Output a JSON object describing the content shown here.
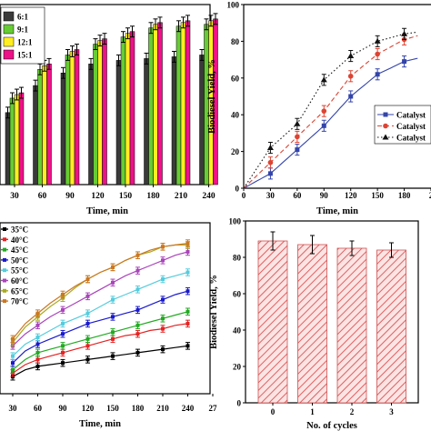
{
  "chart_data": [
    {
      "type": "bar",
      "xlabel": "Time, min",
      "ylabel": "",
      "ylim": [
        0,
        100
      ],
      "legend_position": "top-left",
      "categories": [
        "30",
        "60",
        "90",
        "120",
        "150",
        "180",
        "210",
        "240"
      ],
      "series": [
        {
          "name": "6:1",
          "color": "#3a3a3a",
          "values": [
            40,
            55,
            62,
            67,
            69,
            70,
            71,
            72
          ],
          "errors": [
            3,
            3,
            3,
            3,
            3,
            3,
            3,
            3
          ]
        },
        {
          "name": "9:1",
          "color": "#66cc33",
          "values": [
            48,
            64,
            72,
            78,
            82,
            87,
            88,
            89
          ],
          "errors": [
            3,
            3,
            3,
            3,
            3,
            3,
            3,
            3
          ]
        },
        {
          "name": "12:1",
          "color": "#ffee22",
          "values": [
            50,
            66,
            74,
            80,
            84,
            89,
            90,
            91
          ],
          "errors": [
            3,
            3,
            3,
            3,
            3,
            3,
            3,
            3
          ]
        },
        {
          "name": "15:1",
          "color": "#ee1188",
          "values": [
            51,
            67,
            75,
            81,
            85,
            90,
            91,
            92
          ],
          "errors": [
            3,
            3,
            3,
            3,
            3,
            3,
            3,
            3
          ]
        }
      ]
    },
    {
      "type": "line",
      "xlabel": "Time, min",
      "ylabel": "Biodiesel Yield, %",
      "xlim": [
        0,
        210
      ],
      "ylim": [
        0,
        100
      ],
      "xticks": [
        "0",
        "30",
        "60",
        "90",
        "120",
        "150",
        "180",
        "2"
      ],
      "yticks": [
        "0",
        "20",
        "40",
        "60",
        "80",
        "100"
      ],
      "legend_position": "right",
      "series": [
        {
          "name": "Catalyst",
          "color": "#3344aa",
          "marker": "square",
          "dash": "none",
          "x": [
            0,
            30,
            60,
            90,
            120,
            150,
            180
          ],
          "y": [
            0,
            8,
            21,
            34,
            50,
            62,
            69
          ]
        },
        {
          "name": "Catalyst",
          "color": "#dd4433",
          "marker": "circle",
          "dash": "dashed",
          "x": [
            0,
            30,
            60,
            90,
            120,
            150,
            180
          ],
          "y": [
            0,
            14,
            28,
            42,
            61,
            73,
            81
          ]
        },
        {
          "name": "Catalyst",
          "color": "#111111",
          "marker": "triangle",
          "dash": "dotted",
          "x": [
            0,
            30,
            60,
            90,
            120,
            150,
            180
          ],
          "y": [
            0,
            22,
            35,
            59,
            72,
            80,
            84
          ]
        }
      ]
    },
    {
      "type": "line",
      "xlabel": "Time, min",
      "ylabel": "",
      "xlim": [
        30,
        270
      ],
      "ylim": [
        0,
        100
      ],
      "xticks": [
        "30",
        "60",
        "90",
        "120",
        "150",
        "180",
        "210",
        "240",
        "27"
      ],
      "legend_position": "top-left",
      "x": [
        30,
        45,
        60,
        75,
        90,
        105,
        120,
        135,
        150,
        165,
        180,
        195,
        210,
        225,
        240
      ],
      "series": [
        {
          "name": "35°C",
          "color": "#000000",
          "y": [
            10,
            14,
            16,
            17,
            18,
            19,
            20,
            21,
            22,
            23,
            24,
            25,
            26,
            27,
            28
          ]
        },
        {
          "name": "40°C",
          "color": "#e52222",
          "y": [
            12,
            17,
            20,
            22,
            24,
            26,
            28,
            30,
            32,
            34,
            35,
            37,
            38,
            40,
            41
          ]
        },
        {
          "name": "45°C",
          "color": "#22aa22",
          "y": [
            14,
            20,
            24,
            26,
            28,
            30,
            32,
            34,
            36,
            38,
            40,
            42,
            44,
            46,
            48
          ]
        },
        {
          "name": "50°C",
          "color": "#1a1acc",
          "y": [
            18,
            25,
            29,
            32,
            35,
            38,
            41,
            43,
            45,
            47,
            49,
            52,
            55,
            58,
            60
          ]
        },
        {
          "name": "55°C",
          "color": "#55ccdd",
          "y": [
            22,
            29,
            33,
            37,
            41,
            44,
            47,
            51,
            55,
            58,
            61,
            64,
            67,
            69,
            71
          ]
        },
        {
          "name": "60°C",
          "color": "#aa44bb",
          "y": [
            28,
            35,
            40,
            45,
            49,
            53,
            57,
            61,
            65,
            69,
            72,
            75,
            78,
            81,
            83
          ]
        },
        {
          "name": "65°C",
          "color": "#aaaa22",
          "y": [
            30,
            39,
            45,
            51,
            56,
            62,
            67,
            71,
            74,
            78,
            81,
            83,
            86,
            87,
            87
          ]
        },
        {
          "name": "70°C",
          "color": "#cc7722",
          "y": [
            32,
            41,
            47,
            53,
            58,
            63,
            67,
            71,
            74,
            78,
            81,
            84,
            86,
            87,
            88
          ]
        }
      ]
    },
    {
      "type": "bar",
      "xlabel": "No. of cycles",
      "ylabel": "Biodiesel Yield, %",
      "ylim": [
        0,
        100
      ],
      "yticks": [
        "0",
        "20",
        "40",
        "60",
        "80",
        "100"
      ],
      "categories": [
        "0",
        "1",
        "2",
        "3"
      ],
      "values": [
        89,
        87,
        85,
        84
      ],
      "errors": [
        5,
        5,
        4,
        4
      ],
      "pattern": "hatched",
      "color": "#e87c7c"
    }
  ]
}
